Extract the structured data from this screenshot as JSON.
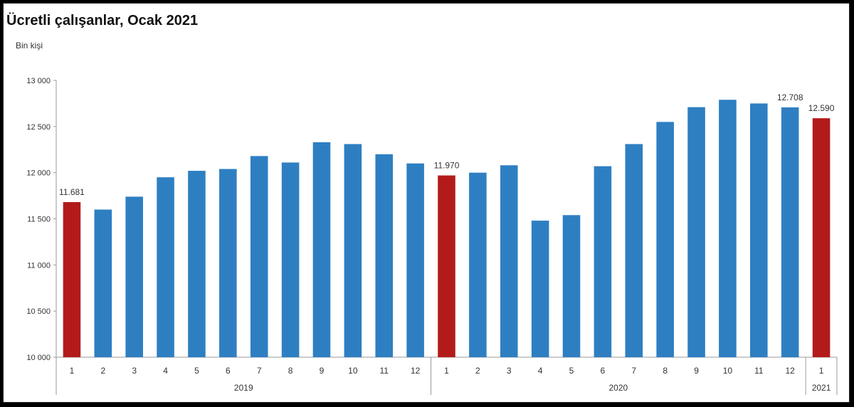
{
  "title": "Ücretli çalışanlar, Ocak 2021",
  "unit_label": "Bin kişi",
  "colors": {
    "bar": "#2e7fc2",
    "highlight": "#b31b1b",
    "axis": "#999999",
    "text": "#333333"
  },
  "chart_data": {
    "type": "bar",
    "title": "Ücretli çalışanlar, Ocak 2021",
    "ylabel": "Bin kişi",
    "xlabel": "",
    "ylim": [
      10000,
      13000
    ],
    "yticks": [
      10000,
      10500,
      11000,
      11500,
      12000,
      12500,
      13000
    ],
    "ytick_labels": [
      "10 000",
      "10 500",
      "11 000",
      "11 500",
      "12 000",
      "12 500",
      "13 000"
    ],
    "grid": false,
    "legend": "none",
    "categories": [
      "1",
      "2",
      "3",
      "4",
      "5",
      "6",
      "7",
      "8",
      "9",
      "10",
      "11",
      "12",
      "1",
      "2",
      "3",
      "4",
      "5",
      "6",
      "7",
      "8",
      "9",
      "10",
      "11",
      "12",
      "1"
    ],
    "groups": [
      {
        "label": "2019",
        "count": 12
      },
      {
        "label": "2020",
        "count": 12
      },
      {
        "label": "2021",
        "count": 1
      }
    ],
    "values": [
      11681,
      11600,
      11740,
      11950,
      12020,
      12040,
      12180,
      12110,
      12330,
      12310,
      12200,
      12100,
      11970,
      12000,
      12080,
      11480,
      11540,
      12070,
      12310,
      12550,
      12710,
      12790,
      12750,
      12708,
      12590
    ],
    "highlight_indices": [
      0,
      12,
      24
    ],
    "data_labels": [
      {
        "index": 0,
        "text": "11.681"
      },
      {
        "index": 12,
        "text": "11.970"
      },
      {
        "index": 23,
        "text": "12.708"
      },
      {
        "index": 24,
        "text": "12.590"
      }
    ]
  }
}
